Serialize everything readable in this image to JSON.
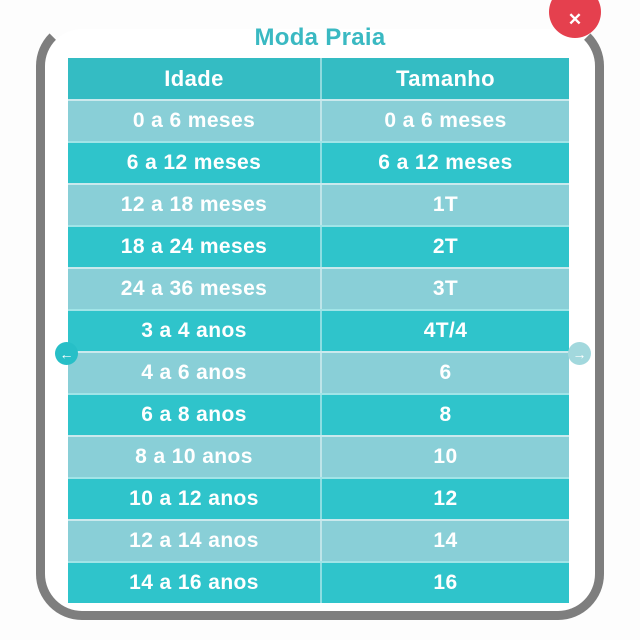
{
  "modal": {
    "title": "Moda Praia"
  },
  "icons": {
    "close": "✕",
    "prev": "←",
    "next": "→"
  },
  "table": {
    "columns": [
      "Idade",
      "Tamanho"
    ],
    "rows": [
      {
        "idade": "0 a 6 meses",
        "tamanho": "0 a 6 meses"
      },
      {
        "idade": "6 a 12 meses",
        "tamanho": "6 a 12 meses"
      },
      {
        "idade": "12 a 18 meses",
        "tamanho": "1T"
      },
      {
        "idade": "18 a 24 meses",
        "tamanho": "2T"
      },
      {
        "idade": "24 a 36 meses",
        "tamanho": "3T"
      },
      {
        "idade": "3 a 4 anos",
        "tamanho": "4T/4"
      },
      {
        "idade": "4 a 6 anos",
        "tamanho": "6"
      },
      {
        "idade": "6 a 8 anos",
        "tamanho": "8"
      },
      {
        "idade": "8 a 10 anos",
        "tamanho": "10"
      },
      {
        "idade": "10 a 12 anos",
        "tamanho": "12"
      },
      {
        "idade": "12 a 14 anos",
        "tamanho": "14"
      },
      {
        "idade": "14 a 16 anos",
        "tamanho": "16"
      }
    ]
  },
  "colors": {
    "accent": "#3ab9c2",
    "header-teal": "#34bcc3",
    "row-dark": "#2fc4cb",
    "row-light": "#89cfd7",
    "close-red": "#e5404e",
    "frame-gray": "#7e7e7e",
    "nav-teal": "#27bfc7",
    "nav-teal-light": "#a2d8dd"
  }
}
